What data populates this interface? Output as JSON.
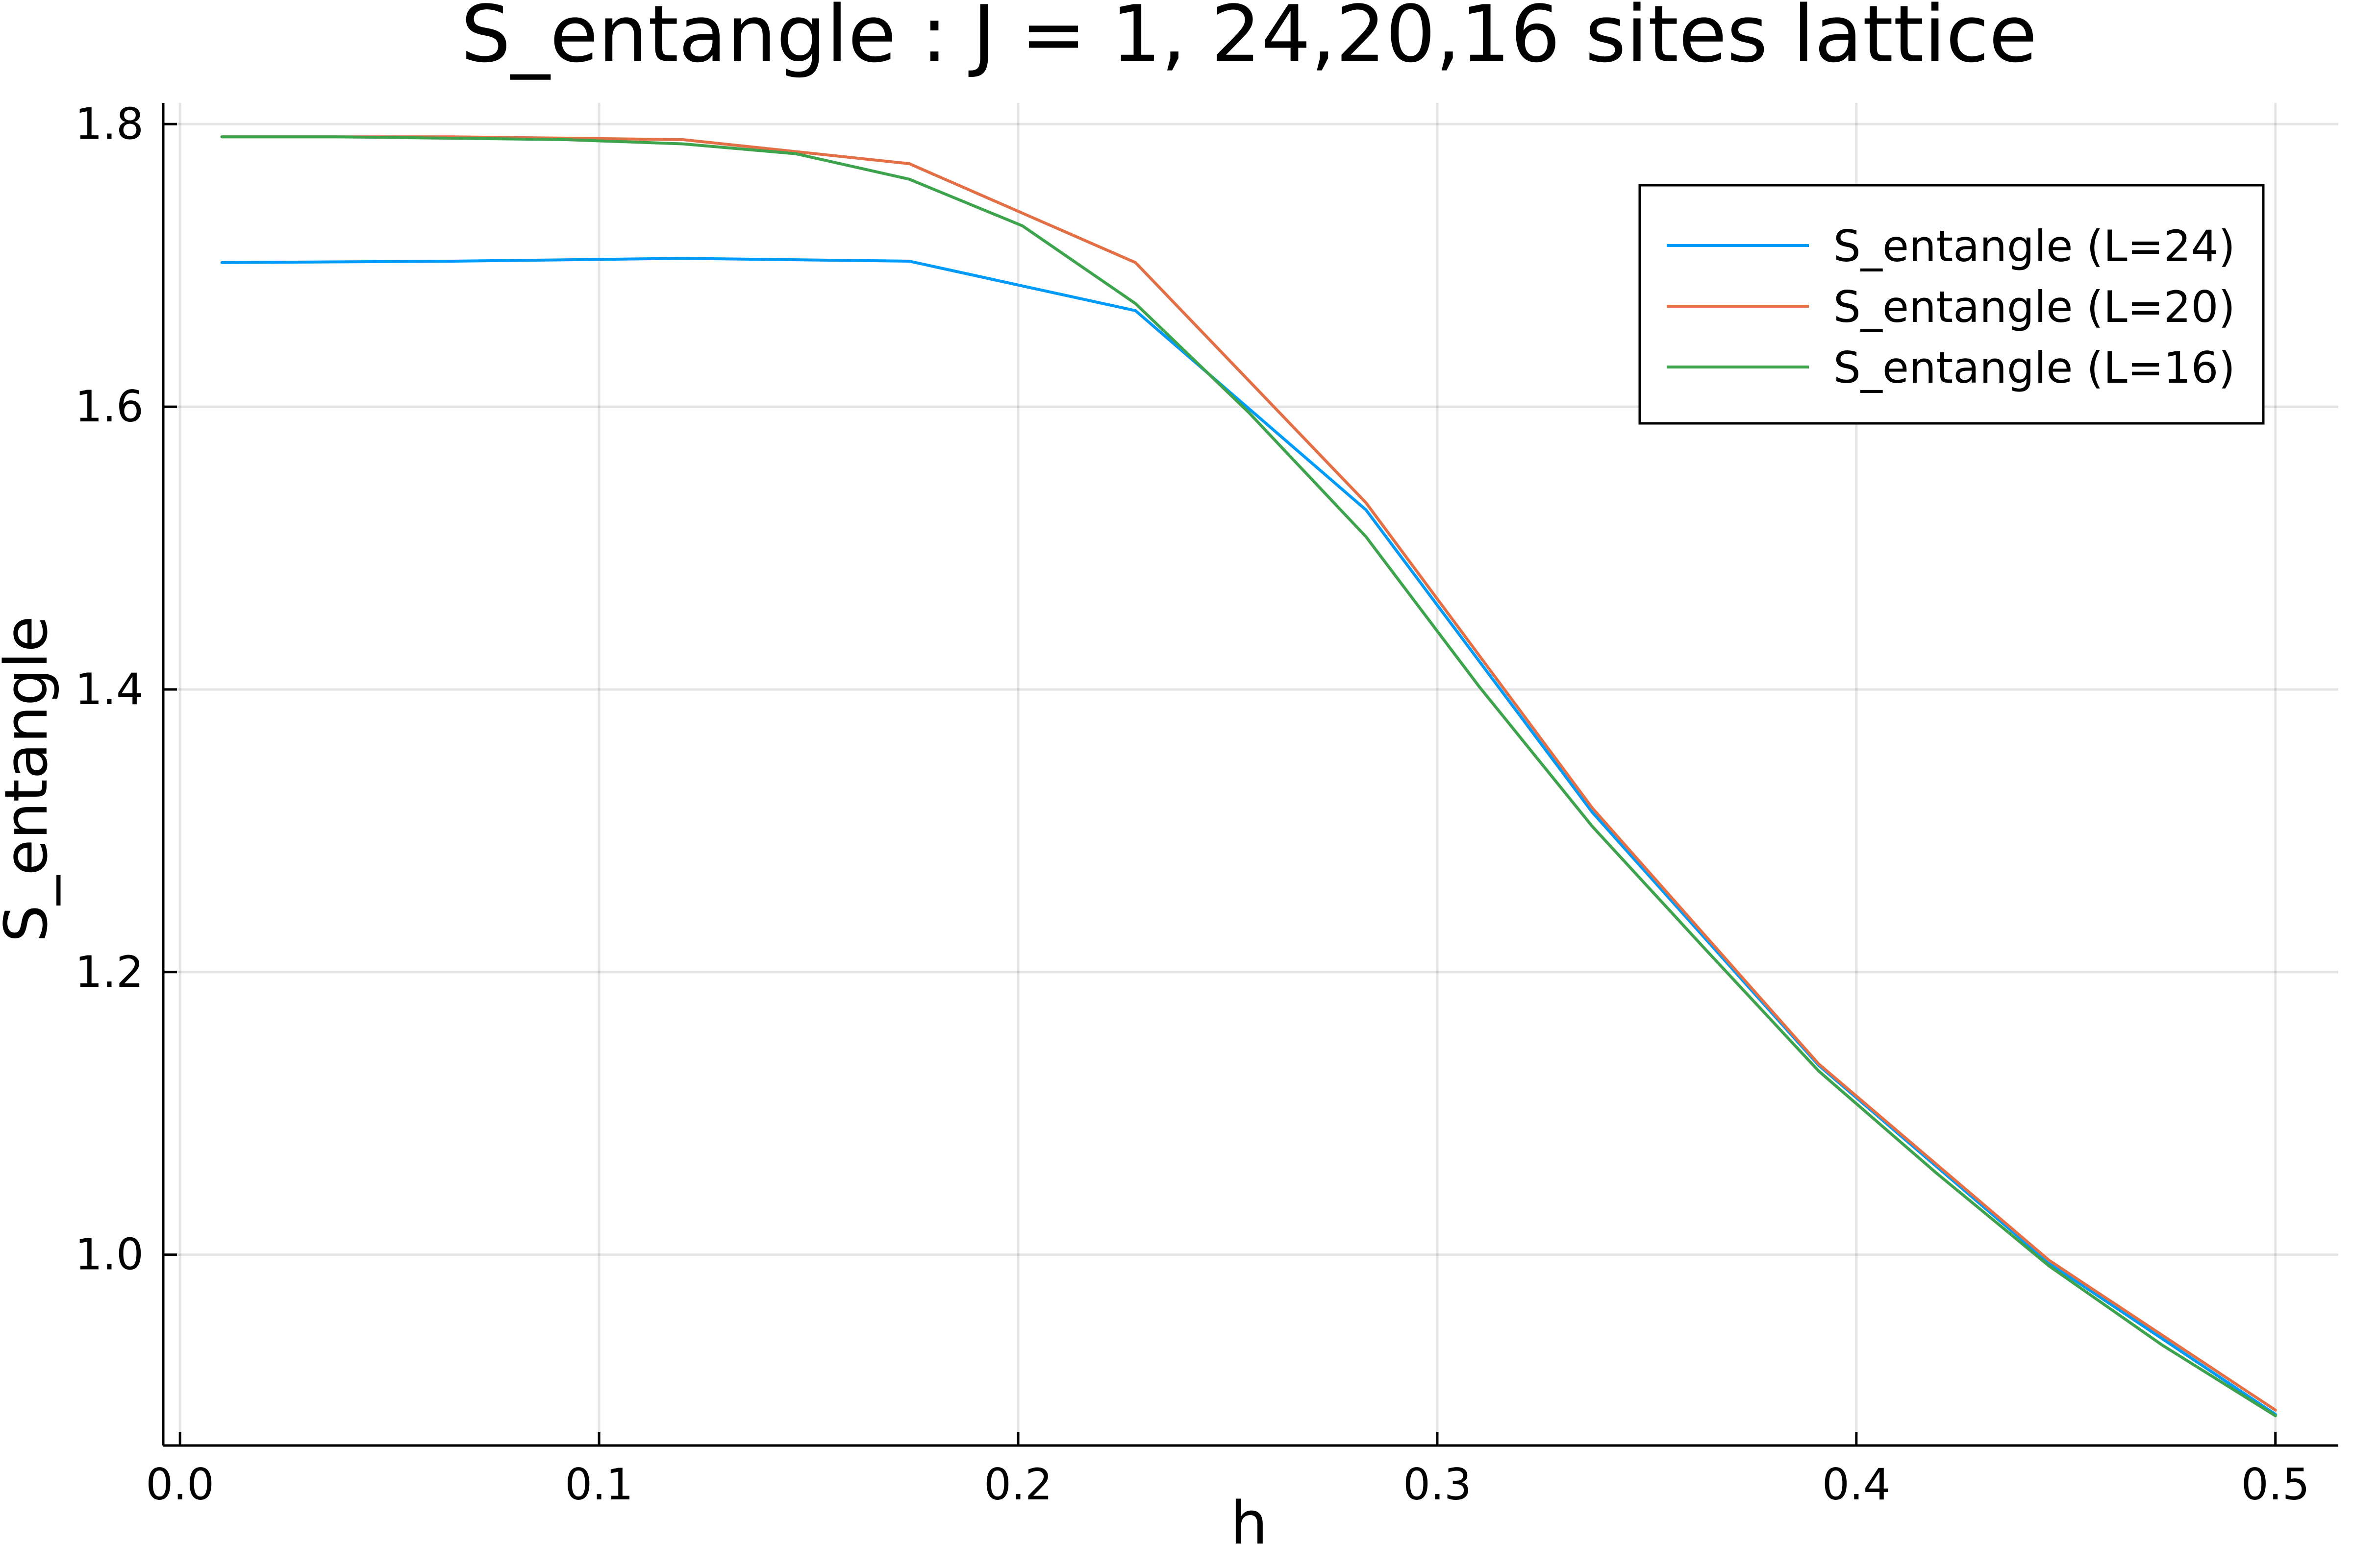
{
  "chart_data": {
    "type": "line",
    "title": "S_entangle : J = 1, 24,20,16 sites lattice",
    "xlabel": "h",
    "ylabel": "S_entangle",
    "xlim": [
      -0.004,
      0.515
    ],
    "ylim": [
      0.865,
      1.815
    ],
    "xticks": [
      0.0,
      0.1,
      0.2,
      0.3,
      0.4,
      0.5
    ],
    "xtick_labels": [
      "0.0",
      "0.1",
      "0.2",
      "0.3",
      "0.4",
      "0.5"
    ],
    "yticks": [
      1.0,
      1.2,
      1.4,
      1.6,
      1.8
    ],
    "ytick_labels": [
      "1.0",
      "1.2",
      "1.4",
      "1.6",
      "1.8"
    ],
    "grid": true,
    "legend_position": "top-right",
    "series": [
      {
        "name": "S_entangle (L=24)",
        "color": "#009af9",
        "x": [
          0.01,
          0.065,
          0.12,
          0.174,
          0.228,
          0.283,
          0.337,
          0.391,
          0.446,
          0.5
        ],
        "y": [
          1.702,
          1.703,
          1.705,
          1.703,
          1.668,
          1.527,
          1.313,
          1.134,
          0.994,
          0.887
        ]
      },
      {
        "name": "S_entangle (L=20)",
        "color": "#e26f46",
        "x": [
          0.01,
          0.065,
          0.12,
          0.174,
          0.228,
          0.283,
          0.337,
          0.391,
          0.446,
          0.5
        ],
        "y": [
          1.791,
          1.791,
          1.789,
          1.772,
          1.702,
          1.532,
          1.316,
          1.135,
          0.996,
          0.89
        ]
      },
      {
        "name": "S_entangle (L=16)",
        "color": "#3da44d",
        "x": [
          0.01,
          0.037,
          0.065,
          0.092,
          0.12,
          0.147,
          0.174,
          0.201,
          0.228,
          0.255,
          0.283,
          0.31,
          0.337,
          0.364,
          0.391,
          0.419,
          0.446,
          0.473,
          0.5
        ],
        "y": [
          1.791,
          1.791,
          1.79,
          1.789,
          1.786,
          1.779,
          1.761,
          1.728,
          1.673,
          1.596,
          1.508,
          1.402,
          1.303,
          1.216,
          1.13,
          1.058,
          0.992,
          0.936,
          0.886
        ]
      }
    ]
  }
}
